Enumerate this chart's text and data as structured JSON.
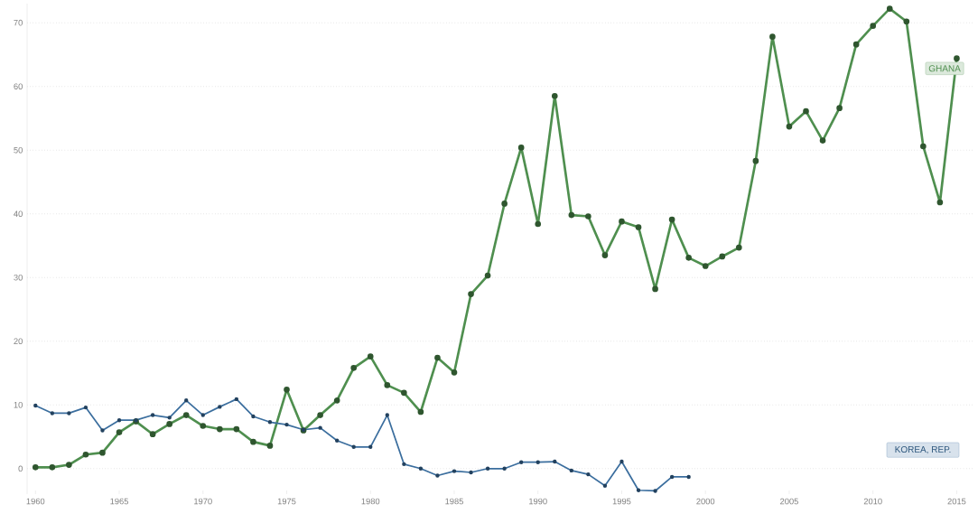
{
  "chart_data": {
    "type": "line",
    "x": [
      1960,
      1961,
      1962,
      1963,
      1964,
      1965,
      1966,
      1967,
      1968,
      1969,
      1970,
      1971,
      1972,
      1973,
      1974,
      1975,
      1976,
      1977,
      1978,
      1979,
      1980,
      1981,
      1982,
      1983,
      1984,
      1985,
      1986,
      1987,
      1988,
      1989,
      1990,
      1991,
      1992,
      1993,
      1994,
      1995,
      1996,
      1997,
      1998,
      1999,
      2000,
      2001,
      2002,
      2003,
      2004,
      2005,
      2006,
      2007,
      2008,
      2009,
      2010,
      2011,
      2012,
      2013,
      2014,
      2015
    ],
    "series": [
      {
        "name": "GHANA",
        "color": "#4f8f4f",
        "values": [
          0.2,
          0.2,
          0.6,
          2.2,
          2.5,
          5.7,
          7.4,
          5.4,
          7.0,
          8.4,
          6.7,
          6.2,
          6.2,
          4.2,
          3.6,
          12.4,
          6.0,
          8.4,
          10.7,
          15.8,
          17.6,
          13.1,
          11.9,
          8.9,
          17.4,
          15.1,
          27.4,
          30.3,
          41.6,
          50.4,
          38.4,
          58.5,
          39.8,
          39.6,
          33.5,
          38.8,
          37.9,
          28.2,
          39.1,
          33.1,
          31.8,
          33.3,
          34.7,
          48.3,
          67.8,
          53.7,
          56.1,
          51.5,
          56.6,
          66.6,
          69.5,
          72.2,
          70.2,
          50.6,
          41.8,
          64.4
        ]
      },
      {
        "name": "KOREA, REP.",
        "color": "#3b6e9e",
        "values": [
          9.9,
          8.7,
          8.7,
          9.6,
          6.0,
          7.6,
          7.6,
          8.4,
          8.0,
          10.7,
          8.4,
          9.7,
          10.9,
          8.2,
          7.3,
          6.9,
          6.1,
          6.4,
          4.4,
          3.4,
          3.4,
          8.4,
          0.7,
          0.0,
          -1.1,
          -0.4,
          -0.6,
          0.0,
          0.0,
          1.0,
          1.0,
          1.1,
          -0.3,
          -0.9,
          -2.7,
          1.1,
          -3.4,
          -3.5,
          -1.3,
          -1.3,
          null,
          null,
          null,
          null,
          null,
          null,
          null,
          null,
          null,
          null,
          null,
          null,
          null,
          null,
          null,
          null
        ]
      }
    ],
    "xlim": [
      1959.5,
      2016
    ],
    "ylim": [
      -4,
      73
    ],
    "xticks": [
      1960,
      1965,
      1970,
      1975,
      1980,
      1985,
      1990,
      1995,
      2000,
      2005,
      2010,
      2015
    ],
    "yticks": [
      0,
      10,
      20,
      30,
      40,
      50,
      60,
      70
    ],
    "grid": "y",
    "marker": "circle",
    "line_style": "solid"
  }
}
